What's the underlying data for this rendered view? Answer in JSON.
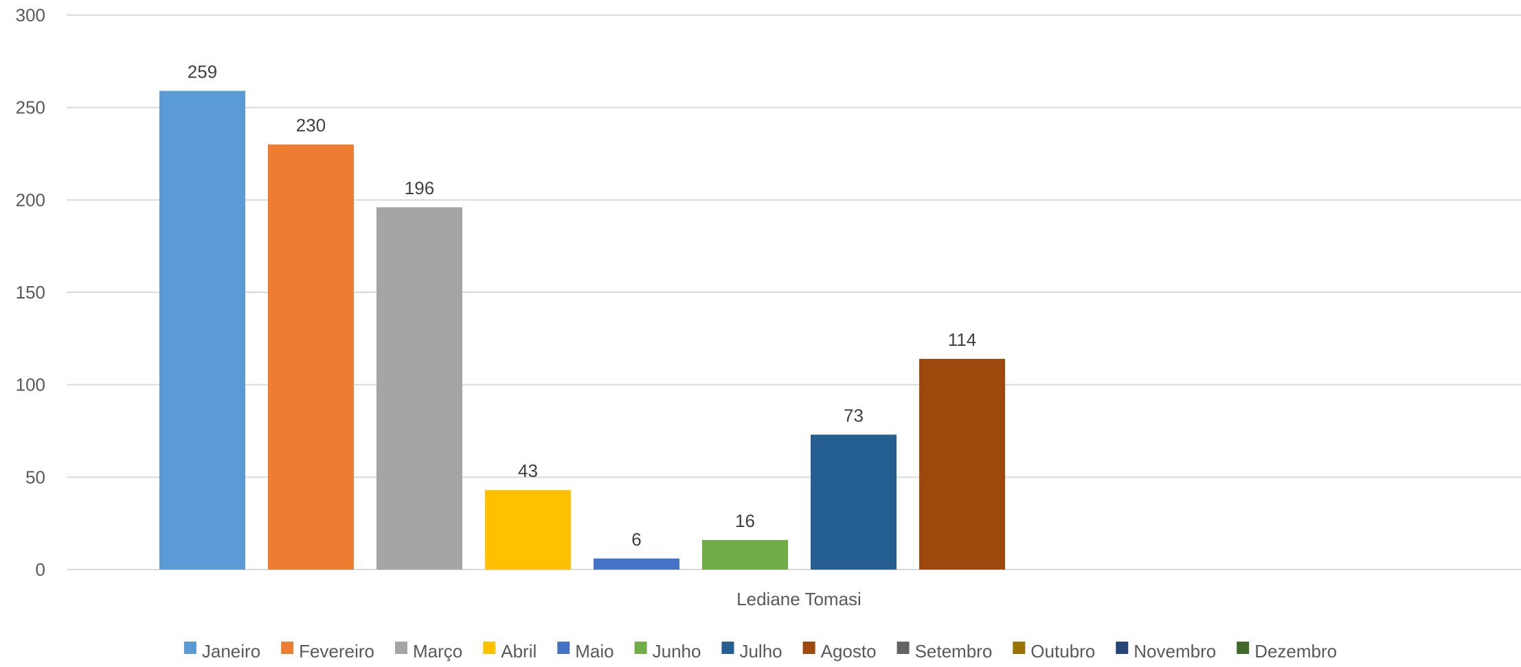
{
  "chart_data": {
    "type": "bar",
    "categories": [
      "Lediane Tomasi"
    ],
    "series": [
      {
        "name": "Janeiro",
        "values": [
          259
        ],
        "color": "#5B9BD5"
      },
      {
        "name": "Fevereiro",
        "values": [
          230
        ],
        "color": "#ED7D31"
      },
      {
        "name": "Março",
        "values": [
          196
        ],
        "color": "#A5A5A5"
      },
      {
        "name": "Abril",
        "values": [
          43
        ],
        "color": "#FFC000"
      },
      {
        "name": "Maio",
        "values": [
          6
        ],
        "color": "#4472C4"
      },
      {
        "name": "Junho",
        "values": [
          16
        ],
        "color": "#70AD47"
      },
      {
        "name": "Julho",
        "values": [
          73
        ],
        "color": "#255E91"
      },
      {
        "name": "Agosto",
        "values": [
          114
        ],
        "color": "#9E480E"
      },
      {
        "name": "Setembro",
        "values": [
          null
        ],
        "color": "#636363"
      },
      {
        "name": "Outubro",
        "values": [
          null
        ],
        "color": "#997300"
      },
      {
        "name": "Novembro",
        "values": [
          null
        ],
        "color": "#264478"
      },
      {
        "name": "Dezembro",
        "values": [
          null
        ],
        "color": "#43682B"
      }
    ],
    "y_ticks": [
      "0",
      "50",
      "100",
      "150",
      "200",
      "250",
      "300"
    ],
    "ylim": [
      0,
      300
    ],
    "grid": true,
    "legend_position": "bottom",
    "title": "",
    "xlabel": "",
    "ylabel": ""
  }
}
